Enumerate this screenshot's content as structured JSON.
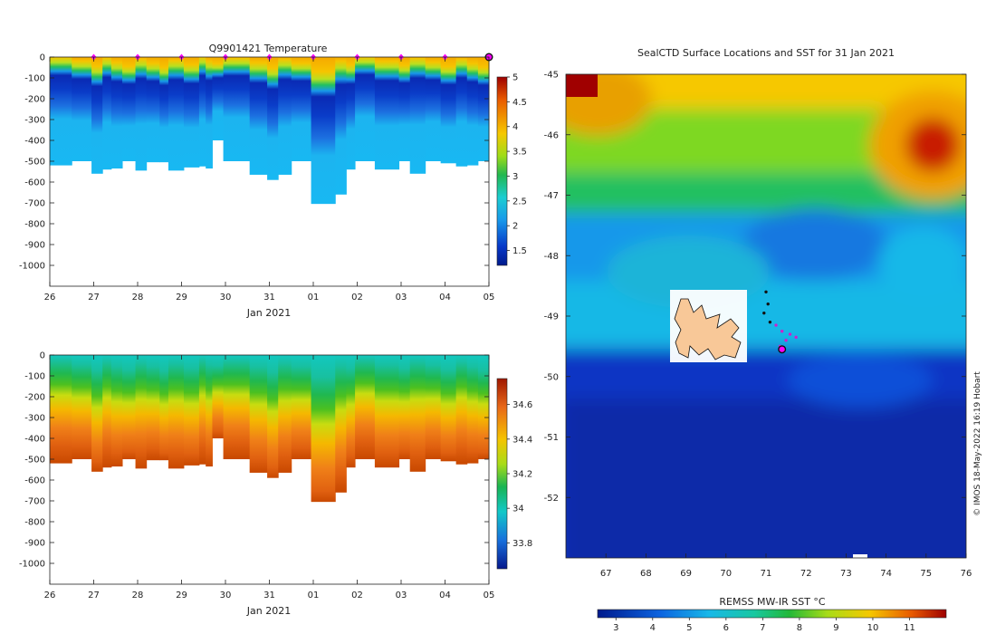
{
  "figure": {
    "credit": "© IMOS 18-May-2022 16:19 Hobart"
  },
  "chart_data": [
    {
      "type": "heatmap",
      "panel": "temperature-section",
      "title": "Q9901421  Temperature",
      "xlabel": "Jan 2021",
      "x_ticks": [
        "26",
        "27",
        "28",
        "29",
        "30",
        "31",
        "01",
        "02",
        "03",
        "04",
        "05"
      ],
      "x_range": [
        26,
        36
      ],
      "y_ticks": [
        0,
        -100,
        -200,
        -300,
        -400,
        -500,
        -600,
        -700,
        -800,
        -900,
        -1000
      ],
      "ylim": [
        -1100,
        0
      ],
      "colorbar_ticks": [
        5,
        4.5,
        4,
        3.5,
        3,
        2.5,
        2,
        1.5
      ],
      "colorbar_range": [
        1.2,
        5
      ],
      "profile_markers_days": [
        27,
        28,
        29,
        30,
        31,
        32,
        33,
        34,
        35
      ],
      "last_marker_day": 36,
      "profiles": [
        {
          "start": 26.0,
          "end": 26.5,
          "bottom": -520
        },
        {
          "start": 26.5,
          "end": 26.95,
          "bottom": -500
        },
        {
          "start": 26.95,
          "end": 27.2,
          "bottom": -560
        },
        {
          "start": 27.2,
          "end": 27.4,
          "bottom": -540
        },
        {
          "start": 27.4,
          "end": 27.65,
          "bottom": -535
        },
        {
          "start": 27.65,
          "end": 27.95,
          "bottom": -500
        },
        {
          "start": 27.95,
          "end": 28.2,
          "bottom": -545
        },
        {
          "start": 28.2,
          "end": 28.5,
          "bottom": -505
        },
        {
          "start": 28.5,
          "end": 28.7,
          "bottom": -505
        },
        {
          "start": 28.7,
          "end": 29.05,
          "bottom": -545
        },
        {
          "start": 29.05,
          "end": 29.4,
          "bottom": -530
        },
        {
          "start": 29.4,
          "end": 29.55,
          "bottom": -525
        },
        {
          "start": 29.55,
          "end": 29.7,
          "bottom": -535
        },
        {
          "start": 29.7,
          "end": 29.95,
          "bottom": -400
        },
        {
          "start": 29.95,
          "end": 30.55,
          "bottom": -500
        },
        {
          "start": 30.55,
          "end": 30.95,
          "bottom": -565
        },
        {
          "start": 30.95,
          "end": 31.2,
          "bottom": -590
        },
        {
          "start": 31.2,
          "end": 31.5,
          "bottom": -565
        },
        {
          "start": 31.5,
          "end": 31.95,
          "bottom": -500
        },
        {
          "start": 31.95,
          "end": 32.5,
          "bottom": -705
        },
        {
          "start": 32.5,
          "end": 32.75,
          "bottom": -660
        },
        {
          "start": 32.75,
          "end": 32.95,
          "bottom": -540
        },
        {
          "start": 32.95,
          "end": 33.4,
          "bottom": -500
        },
        {
          "start": 33.4,
          "end": 33.95,
          "bottom": -540
        },
        {
          "start": 33.95,
          "end": 34.2,
          "bottom": -500
        },
        {
          "start": 34.2,
          "end": 34.55,
          "bottom": -560
        },
        {
          "start": 34.55,
          "end": 34.9,
          "bottom": -500
        },
        {
          "start": 34.9,
          "end": 35.25,
          "bottom": -510
        },
        {
          "start": 35.25,
          "end": 35.5,
          "bottom": -525
        },
        {
          "start": 35.5,
          "end": 35.75,
          "bottom": -520
        },
        {
          "start": 35.75,
          "end": 36.0,
          "bottom": -500
        }
      ]
    },
    {
      "type": "heatmap",
      "panel": "salinity-section",
      "title": "",
      "xlabel": "Jan 2021",
      "x_ticks": [
        "26",
        "27",
        "28",
        "29",
        "30",
        "31",
        "01",
        "02",
        "03",
        "04",
        "05"
      ],
      "x_range": [
        26,
        36
      ],
      "y_ticks": [
        0,
        -100,
        -200,
        -300,
        -400,
        -500,
        -600,
        -700,
        -800,
        -900,
        -1000
      ],
      "ylim": [
        -1100,
        0
      ],
      "colorbar_ticks": [
        34.6,
        34.4,
        34.2,
        34,
        33.8
      ],
      "colorbar_range": [
        33.65,
        34.75
      ]
    },
    {
      "type": "heatmap",
      "panel": "sst-map",
      "title": "SealCTD Surface Locations and SST for 31 Jan 2021",
      "x_ticks": [
        "67",
        "68",
        "69",
        "70",
        "71",
        "72",
        "73",
        "74",
        "75",
        "76"
      ],
      "y_ticks": [
        "-45",
        "-46",
        "-47",
        "-48",
        "-49",
        "-50",
        "-51",
        "-52"
      ],
      "lon_range": [
        66,
        76
      ],
      "lat_range": [
        -53,
        -45
      ],
      "colorbar_label": "REMSS MW-IR SST °C",
      "colorbar_ticks": [
        "3",
        "4",
        "5",
        "6",
        "7",
        "8",
        "9",
        "10",
        "11"
      ],
      "colorbar_range": [
        2.5,
        12
      ],
      "track_lon_lat": [
        [
          71.0,
          -48.6
        ],
        [
          71.05,
          -48.8
        ],
        [
          70.95,
          -48.95
        ],
        [
          71.1,
          -49.1
        ],
        [
          71.25,
          -49.15
        ],
        [
          71.4,
          -49.25
        ],
        [
          71.6,
          -49.3
        ],
        [
          71.75,
          -49.35
        ],
        [
          71.5,
          -49.4
        ],
        [
          71.35,
          -49.5
        ],
        [
          71.4,
          -49.55
        ]
      ],
      "last_position": [
        71.4,
        -49.55
      ]
    }
  ]
}
